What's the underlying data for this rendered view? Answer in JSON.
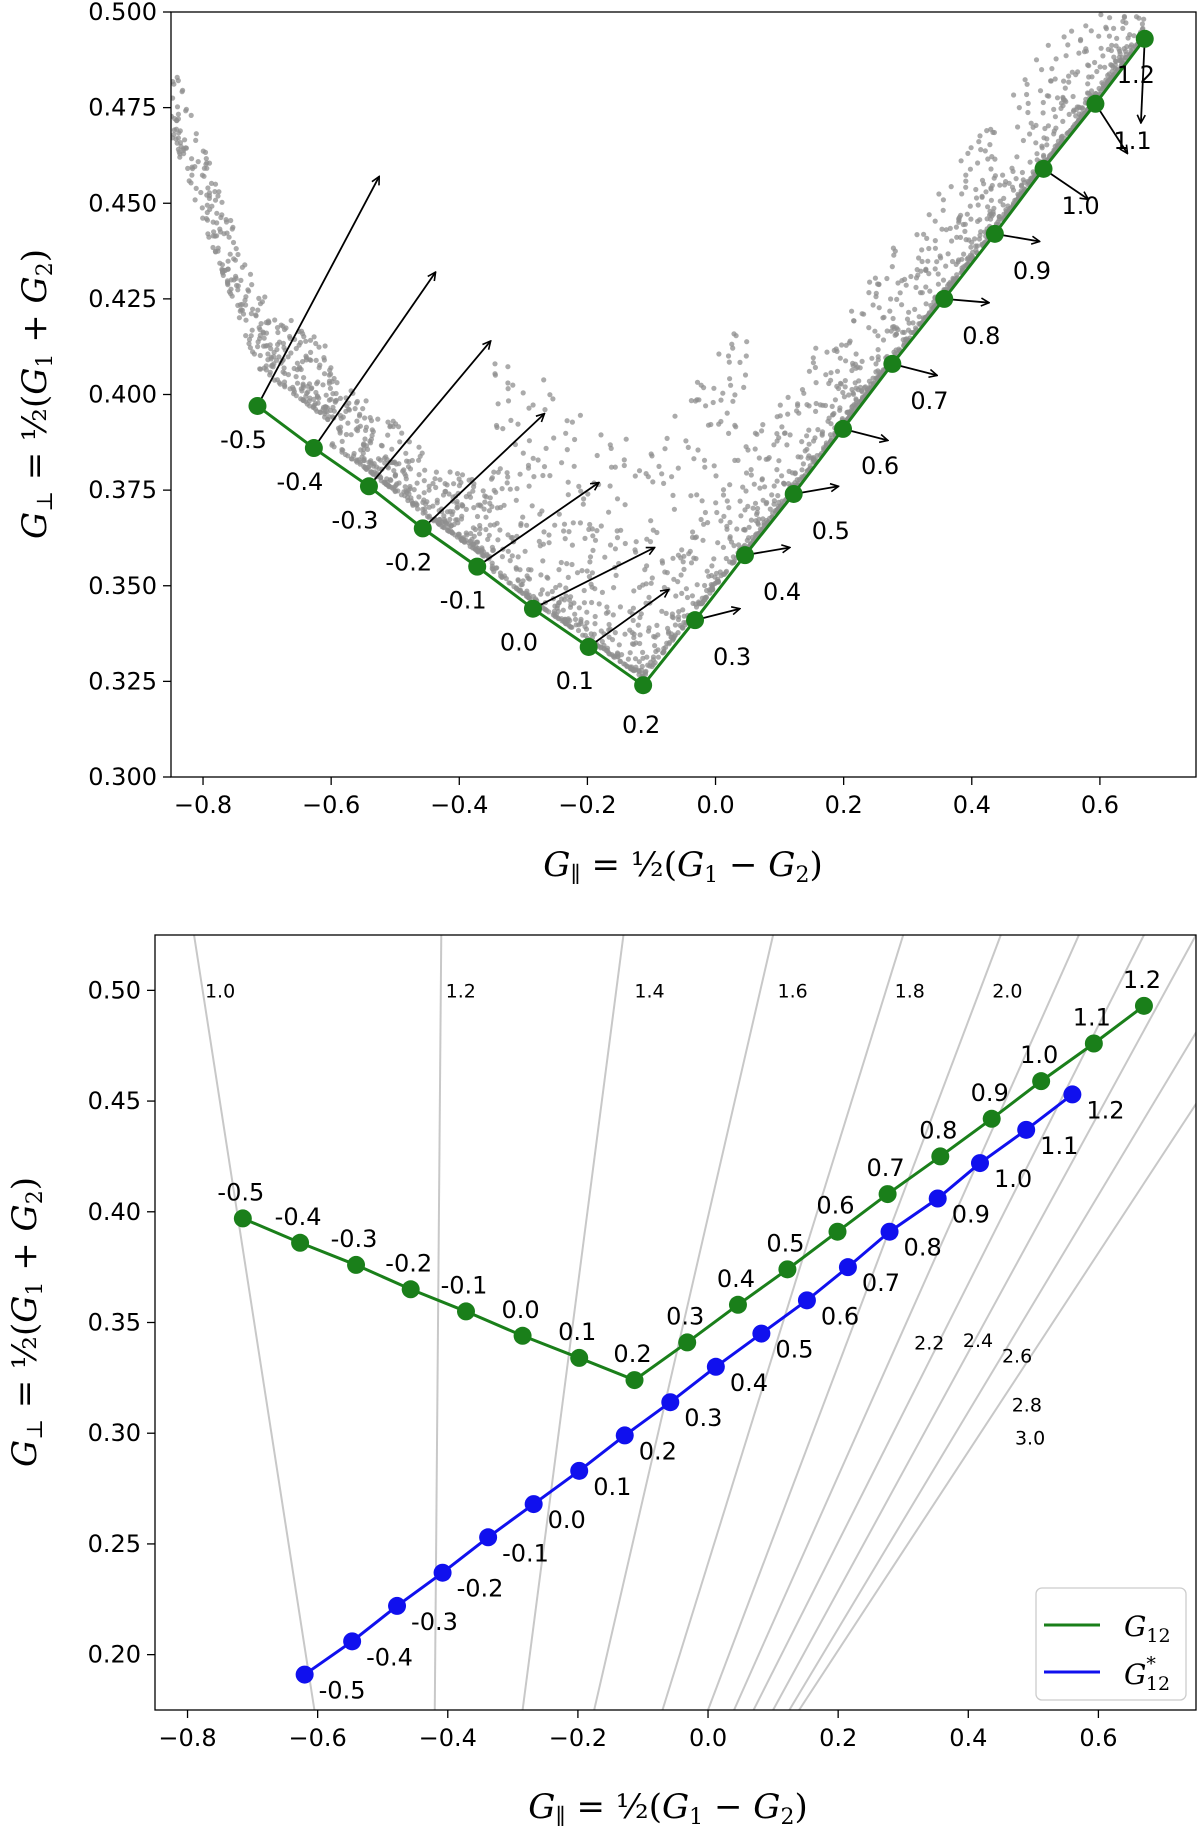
{
  "colors": {
    "green": "#1a7f1a",
    "blue": "#1010ee",
    "gray": "#8f8f8f",
    "isoline": "#c8c8c8",
    "arrow": "#000000"
  },
  "chart_data": [
    {
      "type": "scatter",
      "panel": "top",
      "xlabel": "G∥ = ½(G₁ − G₂)",
      "ylabel": "G⊥ = ½(G₁ + G₂)",
      "xlim": [
        -0.85,
        0.75
      ],
      "ylim": [
        0.3,
        0.5
      ],
      "xticks": [
        "−0.8",
        "−0.6",
        "−0.4",
        "−0.2",
        "0.0",
        "0.2",
        "0.4",
        "0.6"
      ],
      "xtick_values": [
        -0.8,
        -0.6,
        -0.4,
        -0.2,
        0.0,
        0.2,
        0.4,
        0.6
      ],
      "yticks": [
        "0.300",
        "0.325",
        "0.350",
        "0.375",
        "0.400",
        "0.425",
        "0.450",
        "0.475",
        "0.500"
      ],
      "ytick_values": [
        0.3,
        0.325,
        0.35,
        0.375,
        0.4,
        0.425,
        0.45,
        0.475,
        0.5
      ],
      "grid": false,
      "series": [
        {
          "name": "G12",
          "labels": [
            "-0.5",
            "-0.4",
            "-0.3",
            "-0.2",
            "-0.1",
            "0.0",
            "0.1",
            "0.2",
            "0.3",
            "0.4",
            "0.5",
            "0.6",
            "0.7",
            "0.8",
            "0.9",
            "1.0",
            "1.1",
            "1.2"
          ],
          "x": [
            -0.715,
            -0.627,
            -0.541,
            -0.457,
            -0.372,
            -0.285,
            -0.198,
            -0.113,
            -0.032,
            0.046,
            0.122,
            0.199,
            0.276,
            0.357,
            0.436,
            0.512,
            0.593,
            0.67
          ],
          "y": [
            0.397,
            0.386,
            0.376,
            0.365,
            0.355,
            0.344,
            0.334,
            0.324,
            0.341,
            0.358,
            0.374,
            0.391,
            0.408,
            0.425,
            0.442,
            0.459,
            0.476,
            0.493
          ]
        }
      ],
      "arrows": [
        {
          "dx": 0.19,
          "dy": 0.06
        },
        {
          "dx": 0.19,
          "dy": 0.046
        },
        {
          "dx": 0.19,
          "dy": 0.038
        },
        {
          "dx": 0.19,
          "dy": 0.03
        },
        {
          "dx": 0.19,
          "dy": 0.022
        },
        {
          "dx": 0.19,
          "dy": 0.016
        },
        {
          "dx": 0.125,
          "dy": 0.015
        },
        {
          "dx": 0.0,
          "dy": 0.0
        },
        {
          "dx": 0.07,
          "dy": 0.003
        },
        {
          "dx": 0.07,
          "dy": 0.002
        },
        {
          "dx": 0.07,
          "dy": 0.002
        },
        {
          "dx": 0.07,
          "dy": -0.003
        },
        {
          "dx": 0.07,
          "dy": -0.003
        },
        {
          "dx": 0.07,
          "dy": -0.001
        },
        {
          "dx": 0.07,
          "dy": -0.002
        },
        {
          "dx": 0.07,
          "dy": -0.008
        },
        {
          "dx": 0.05,
          "dy": -0.013
        },
        {
          "dx": -0.006,
          "dy": -0.022
        }
      ],
      "scatter_description": "thousands of gray samples forming a V-shaped cloud above the green curve"
    },
    {
      "type": "line",
      "panel": "bottom",
      "xlabel": "G∥ = ½(G₁ − G₂)",
      "ylabel": "G⊥ = ½(G₁ + G₂)",
      "xlim": [
        -0.85,
        0.75
      ],
      "ylim": [
        0.175,
        0.525
      ],
      "xticks": [
        "−0.8",
        "−0.6",
        "−0.4",
        "−0.2",
        "0.0",
        "0.2",
        "0.4",
        "0.6"
      ],
      "xtick_values": [
        -0.8,
        -0.6,
        -0.4,
        -0.2,
        0.0,
        0.2,
        0.4,
        0.6
      ],
      "yticks": [
        "0.20",
        "0.25",
        "0.30",
        "0.35",
        "0.40",
        "0.45",
        "0.50"
      ],
      "ytick_values": [
        0.2,
        0.25,
        0.3,
        0.35,
        0.4,
        0.45,
        0.5
      ],
      "grid": false,
      "legend": {
        "position": "bottom-right",
        "entries": [
          {
            "label": "G",
            "sub": "12",
            "sup": "",
            "color": "green"
          },
          {
            "label": "G",
            "sub": "12",
            "sup": "*",
            "color": "blue"
          }
        ]
      },
      "series": [
        {
          "name": "G12",
          "color": "green",
          "labels": [
            "-0.5",
            "-0.4",
            "-0.3",
            "-0.2",
            "-0.1",
            "0.0",
            "0.1",
            "0.2",
            "0.3",
            "0.4",
            "0.5",
            "0.6",
            "0.7",
            "0.8",
            "0.9",
            "1.0",
            "1.1",
            "1.2"
          ],
          "x": [
            -0.715,
            -0.627,
            -0.541,
            -0.457,
            -0.372,
            -0.285,
            -0.198,
            -0.113,
            -0.032,
            0.046,
            0.122,
            0.199,
            0.276,
            0.357,
            0.436,
            0.512,
            0.593,
            0.67
          ],
          "y": [
            0.397,
            0.386,
            0.376,
            0.365,
            0.355,
            0.344,
            0.334,
            0.324,
            0.341,
            0.358,
            0.374,
            0.391,
            0.408,
            0.425,
            0.442,
            0.459,
            0.476,
            0.493
          ]
        },
        {
          "name": "G12*",
          "color": "blue",
          "labels": [
            "-0.5",
            "-0.4",
            "-0.3",
            "-0.2",
            "-0.1",
            "0.0",
            "0.1",
            "0.2",
            "0.3",
            "0.4",
            "0.5",
            "0.6",
            "0.7",
            "0.8",
            "0.9",
            "1.0",
            "1.1",
            "1.2"
          ],
          "x": [
            -0.62,
            -0.547,
            -0.478,
            -0.408,
            -0.338,
            -0.268,
            -0.198,
            -0.128,
            -0.058,
            0.012,
            0.082,
            0.152,
            0.215,
            0.279,
            0.353,
            0.418,
            0.489,
            0.56
          ],
          "y": [
            0.191,
            0.206,
            0.222,
            0.237,
            0.253,
            0.268,
            0.283,
            0.299,
            0.314,
            0.33,
            0.345,
            0.36,
            0.375,
            0.391,
            0.406,
            0.422,
            0.437,
            0.453
          ]
        }
      ],
      "isolines": [
        {
          "label": "1.0",
          "bottom_x": -0.605,
          "top_x": -0.79
        },
        {
          "label": "1.2",
          "bottom_x": -0.42,
          "top_x": -0.41
        },
        {
          "label": "1.4",
          "bottom_x": -0.285,
          "top_x": -0.13
        },
        {
          "label": "1.6",
          "bottom_x": -0.175,
          "top_x": 0.1
        },
        {
          "label": "1.8",
          "bottom_x": -0.07,
          "top_x": 0.3
        },
        {
          "label": "2.0",
          "bottom_x": 0.0,
          "top_x": 0.45
        },
        {
          "label": "2.2",
          "bottom_x": 0.04,
          "top_x": 0.57
        },
        {
          "label": "2.4",
          "bottom_x": 0.07,
          "top_x": 0.67
        },
        {
          "label": "2.6",
          "bottom_x": 0.1,
          "top_x": 0.75
        },
        {
          "label": "2.8",
          "bottom_x": 0.125,
          "top_x": 0.84
        },
        {
          "label": "3.0",
          "bottom_x": 0.14,
          "top_x": 0.92
        }
      ],
      "isoline_label_positions": [
        {
          "label": "1.0",
          "x": -0.75,
          "y": 0.5
        },
        {
          "label": "1.2",
          "x": -0.38,
          "y": 0.5
        },
        {
          "label": "1.4",
          "x": -0.09,
          "y": 0.5
        },
        {
          "label": "1.6",
          "x": 0.13,
          "y": 0.5
        },
        {
          "label": "1.8",
          "x": 0.31,
          "y": 0.5
        },
        {
          "label": "2.0",
          "x": 0.46,
          "y": 0.5
        },
        {
          "label": "2.2",
          "x": 0.34,
          "y": 0.341
        },
        {
          "label": "2.4",
          "x": 0.415,
          "y": 0.342
        },
        {
          "label": "2.6",
          "x": 0.475,
          "y": 0.335
        },
        {
          "label": "2.8",
          "x": 0.49,
          "y": 0.313
        },
        {
          "label": "3.0",
          "x": 0.495,
          "y": 0.298
        }
      ]
    }
  ]
}
